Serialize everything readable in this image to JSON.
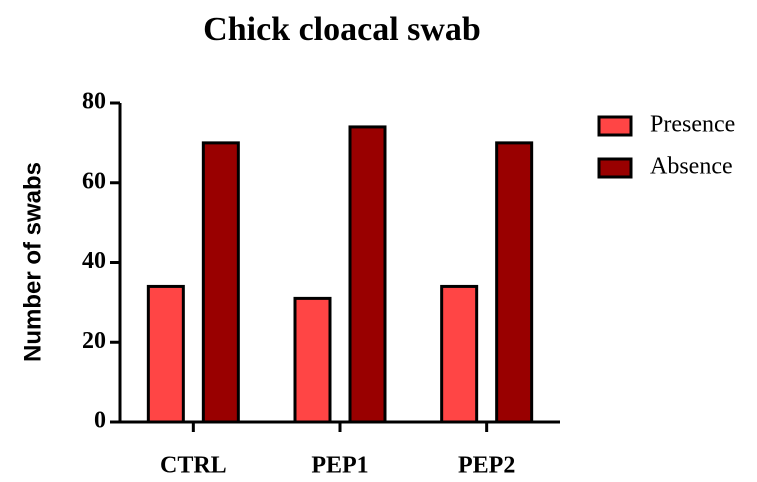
{
  "chart_data": {
    "type": "bar",
    "title": "Chick cloacal swab",
    "y_label": "Number of swabs",
    "categories": [
      "CTRL",
      "PEP1",
      "PEP2"
    ],
    "series": [
      {
        "name": "Presence",
        "color": "#ff4545",
        "values": [
          34,
          31,
          34
        ]
      },
      {
        "name": "Absence",
        "color": "#990000",
        "values": [
          70,
          74,
          70
        ]
      }
    ],
    "ylim": [
      0,
      80
    ],
    "yticks": [
      0,
      20,
      40,
      60,
      80
    ],
    "grid": false,
    "legend": "right"
  }
}
